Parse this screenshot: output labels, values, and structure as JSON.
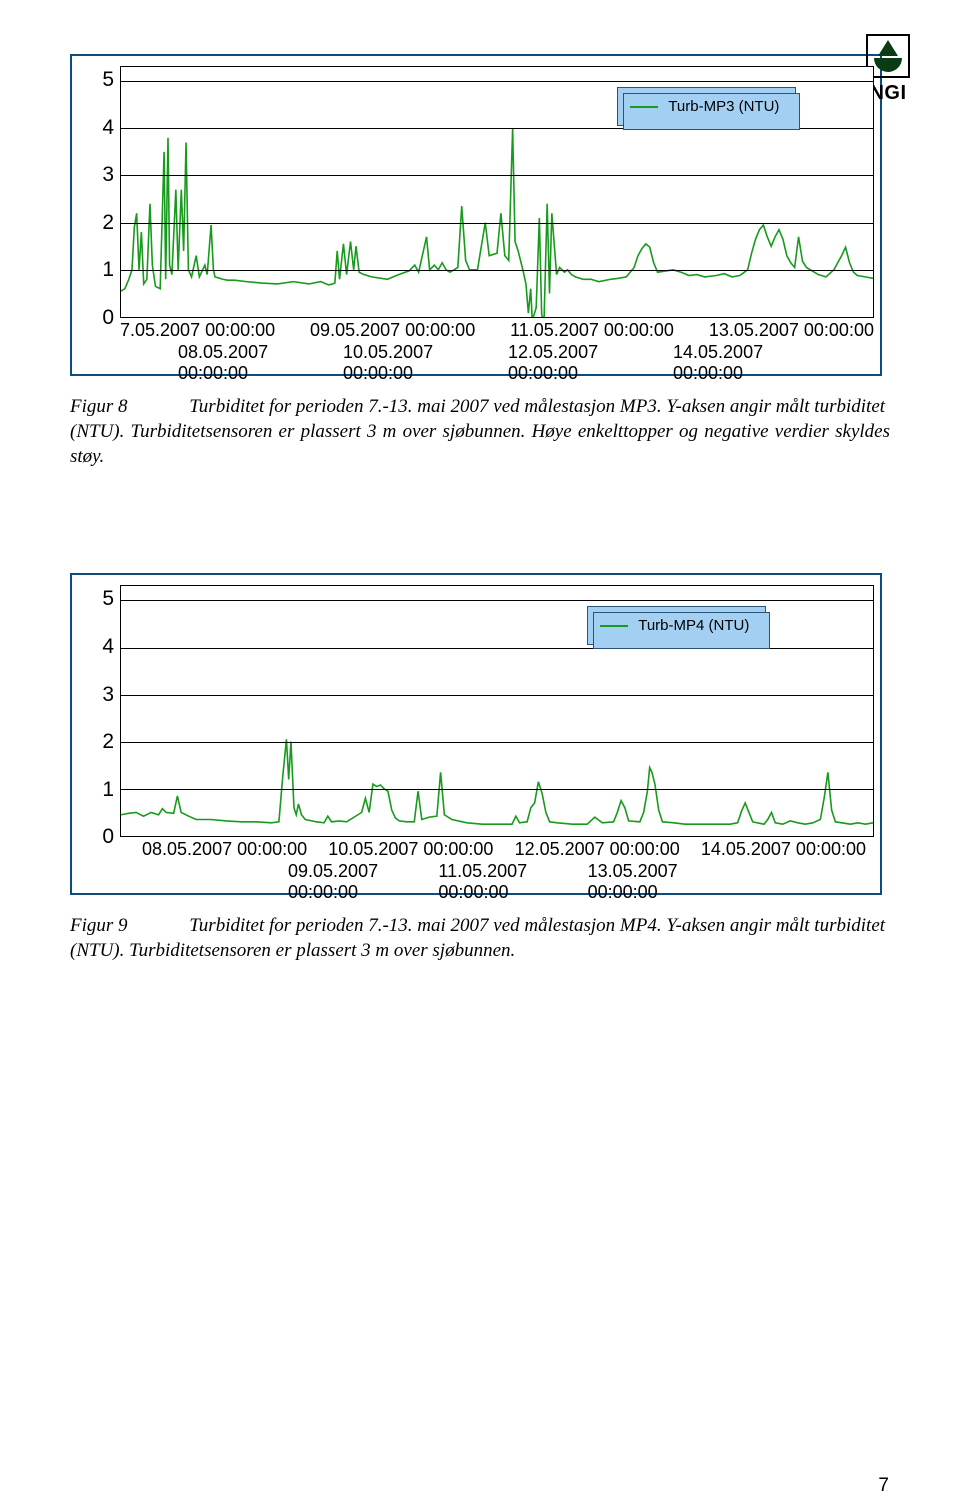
{
  "logo_text": "NGI",
  "line_color": "#189a1c",
  "legend_bg": "#a3cff3",
  "legend_border": "#2b5379",
  "chart_border": "#0a4d80",
  "chart1": {
    "type": "line",
    "legend_label": "Turb-MP3 (NTU)",
    "legend_pos_pct": [
      66,
      8
    ],
    "ylim": [
      0,
      5.3
    ],
    "yticks": [
      0,
      1,
      2,
      3,
      4,
      5
    ],
    "x_row1": [
      "7.05.2007 00:00:00",
      "09.05.2007 00:00:00",
      "11.05.2007 00:00:00",
      "13.05.2007 00:00:00"
    ],
    "x_row2": [
      "08.05.2007 00:00:00",
      "10.05.2007 00:00:00",
      "12.05.2007 00:00:00",
      "14.05.2007 00:00:00"
    ],
    "series": [
      [
        0,
        0.55
      ],
      [
        0.5,
        0.6
      ],
      [
        1,
        0.8
      ],
      [
        1.4,
        1.0
      ],
      [
        1.7,
        1.9
      ],
      [
        2,
        2.2
      ],
      [
        2.3,
        1.0
      ],
      [
        2.6,
        1.8
      ],
      [
        2.9,
        0.7
      ],
      [
        3.3,
        0.8
      ],
      [
        3.7,
        2.4
      ],
      [
        4,
        1.1
      ],
      [
        4.4,
        0.65
      ],
      [
        5,
        0.6
      ],
      [
        5.5,
        3.5
      ],
      [
        5.7,
        0.8
      ],
      [
        6,
        3.8
      ],
      [
        6.2,
        1.1
      ],
      [
        6.5,
        0.9
      ],
      [
        7,
        2.7
      ],
      [
        7.3,
        1.0
      ],
      [
        7.7,
        2.7
      ],
      [
        8,
        1.4
      ],
      [
        8.3,
        3.7
      ],
      [
        8.6,
        1.0
      ],
      [
        9,
        0.85
      ],
      [
        9.6,
        1.3
      ],
      [
        10,
        0.85
      ],
      [
        10.7,
        1.1
      ],
      [
        11,
        0.9
      ],
      [
        11.5,
        1.95
      ],
      [
        11.8,
        1.0
      ],
      [
        12,
        0.85
      ],
      [
        13,
        0.8
      ],
      [
        13.6,
        0.78
      ],
      [
        14.5,
        0.78
      ],
      [
        16,
        0.75
      ],
      [
        18,
        0.72
      ],
      [
        20,
        0.7
      ],
      [
        22,
        0.75
      ],
      [
        24,
        0.7
      ],
      [
        25.5,
        0.75
      ],
      [
        26.5,
        0.68
      ],
      [
        27,
        0.7
      ],
      [
        27.3,
        0.72
      ],
      [
        27.6,
        1.4
      ],
      [
        27.9,
        0.8
      ],
      [
        28.4,
        1.55
      ],
      [
        28.8,
        0.9
      ],
      [
        29.3,
        1.6
      ],
      [
        29.7,
        1.0
      ],
      [
        30,
        1.5
      ],
      [
        30.4,
        0.95
      ],
      [
        31,
        0.9
      ],
      [
        32,
        0.85
      ],
      [
        34,
        0.8
      ],
      [
        35.5,
        0.9
      ],
      [
        36.8,
        0.98
      ],
      [
        37.5,
        1.1
      ],
      [
        38,
        0.95
      ],
      [
        39,
        1.7
      ],
      [
        39.4,
        1.0
      ],
      [
        40,
        1.1
      ],
      [
        40.5,
        1.0
      ],
      [
        41,
        1.15
      ],
      [
        41.5,
        1.0
      ],
      [
        42,
        0.95
      ],
      [
        43,
        1.05
      ],
      [
        43.5,
        2.35
      ],
      [
        44,
        1.2
      ],
      [
        44.5,
        1.0
      ],
      [
        45.5,
        1.0
      ],
      [
        46.5,
        2.0
      ],
      [
        47,
        1.3
      ],
      [
        48,
        1.35
      ],
      [
        48.5,
        2.2
      ],
      [
        49,
        1.3
      ],
      [
        49.5,
        1.2
      ],
      [
        50,
        4.0
      ],
      [
        50.3,
        1.6
      ],
      [
        50.7,
        1.4
      ],
      [
        51.3,
        1.0
      ],
      [
        51.7,
        0.7
      ],
      [
        52,
        0.08
      ],
      [
        52.3,
        0.6
      ],
      [
        52.5,
        -0.08
      ],
      [
        53,
        0.2
      ],
      [
        53.4,
        2.1
      ],
      [
        53.7,
        0.05
      ],
      [
        54,
        -0.1
      ],
      [
        54.4,
        2.4
      ],
      [
        54.7,
        0.5
      ],
      [
        55,
        2.2
      ],
      [
        55.6,
        0.9
      ],
      [
        56,
        1.05
      ],
      [
        56.6,
        0.95
      ],
      [
        57,
        1.0
      ],
      [
        57.5,
        0.9
      ],
      [
        58,
        0.85
      ],
      [
        59,
        0.8
      ],
      [
        60,
        0.8
      ],
      [
        61,
        0.75
      ],
      [
        62.5,
        0.8
      ],
      [
        63.5,
        0.82
      ],
      [
        64.5,
        0.85
      ],
      [
        65.5,
        1.05
      ],
      [
        66,
        1.3
      ],
      [
        66.5,
        1.45
      ],
      [
        67,
        1.55
      ],
      [
        67.5,
        1.48
      ],
      [
        68,
        1.15
      ],
      [
        68.5,
        0.95
      ],
      [
        70.5,
        1.0
      ],
      [
        71.5,
        0.95
      ],
      [
        72.5,
        0.88
      ],
      [
        73.5,
        0.9
      ],
      [
        74.5,
        0.85
      ],
      [
        76,
        0.88
      ],
      [
        77,
        0.92
      ],
      [
        78,
        0.85
      ],
      [
        79,
        0.88
      ],
      [
        80,
        1.0
      ],
      [
        80.5,
        1.35
      ],
      [
        81,
        1.65
      ],
      [
        81.5,
        1.85
      ],
      [
        82,
        1.95
      ],
      [
        82.5,
        1.7
      ],
      [
        83,
        1.5
      ],
      [
        83.5,
        1.7
      ],
      [
        84,
        1.85
      ],
      [
        84.5,
        1.65
      ],
      [
        85,
        1.3
      ],
      [
        85.5,
        1.15
      ],
      [
        86,
        1.05
      ],
      [
        86.5,
        1.7
      ],
      [
        87,
        1.18
      ],
      [
        87.5,
        1.05
      ],
      [
        88,
        1.0
      ],
      [
        89,
        0.9
      ],
      [
        90,
        0.85
      ],
      [
        91,
        1.0
      ],
      [
        92,
        1.3
      ],
      [
        92.5,
        1.48
      ],
      [
        93,
        1.15
      ],
      [
        93.5,
        0.95
      ],
      [
        94,
        0.88
      ],
      [
        95,
        0.85
      ],
      [
        96,
        0.82
      ]
    ]
  },
  "caption1": {
    "label": "Figur 8",
    "text_line1": "Turbiditet for perioden 7.-13. mai 2007 ved målestasjon MP3. Y-aksen angir målt turbiditet",
    "text_line2": "(NTU). Turbiditetsensoren er plassert 3 m over sjøbunnen. Høye enkelttopper og negative verdier skyldes støy."
  },
  "chart2": {
    "type": "line",
    "legend_label": "Turb-MP4 (NTU)",
    "legend_pos_pct": [
      62,
      8
    ],
    "ylim": [
      0,
      5.3
    ],
    "yticks": [
      0,
      1,
      2,
      3,
      4,
      5
    ],
    "x_row1": [
      "08.05.2007 00:00:00",
      "10.05.2007 00:00:00",
      "12.05.2007 00:00:00",
      "14.05.2007 00:00:00"
    ],
    "x_row2": [
      "09.05.2007 00:00:00",
      "11.05.2007 00:00:00",
      "13.05.2007 00:00:00"
    ],
    "series": [
      [
        0,
        0.45
      ],
      [
        1,
        0.48
      ],
      [
        2,
        0.5
      ],
      [
        3,
        0.42
      ],
      [
        4,
        0.5
      ],
      [
        5,
        0.45
      ],
      [
        5.5,
        0.58
      ],
      [
        6,
        0.5
      ],
      [
        7,
        0.48
      ],
      [
        7.5,
        0.85
      ],
      [
        8,
        0.5
      ],
      [
        9,
        0.42
      ],
      [
        10,
        0.35
      ],
      [
        12,
        0.35
      ],
      [
        14,
        0.32
      ],
      [
        16,
        0.3
      ],
      [
        18,
        0.3
      ],
      [
        20,
        0.28
      ],
      [
        21,
        0.3
      ],
      [
        21.5,
        1.25
      ],
      [
        22,
        2.05
      ],
      [
        22.3,
        1.2
      ],
      [
        22.6,
        2.0
      ],
      [
        23,
        0.6
      ],
      [
        23.3,
        0.45
      ],
      [
        23.6,
        0.68
      ],
      [
        24,
        0.45
      ],
      [
        24.5,
        0.35
      ],
      [
        26,
        0.3
      ],
      [
        27,
        0.28
      ],
      [
        27.5,
        0.42
      ],
      [
        28,
        0.3
      ],
      [
        29,
        0.32
      ],
      [
        30,
        0.3
      ],
      [
        31,
        0.4
      ],
      [
        32,
        0.5
      ],
      [
        32.5,
        0.8
      ],
      [
        33,
        0.5
      ],
      [
        33.5,
        1.1
      ],
      [
        34,
        1.05
      ],
      [
        34.5,
        1.08
      ],
      [
        35,
        1.0
      ],
      [
        35.5,
        0.95
      ],
      [
        36,
        0.55
      ],
      [
        36.5,
        0.38
      ],
      [
        37,
        0.32
      ],
      [
        38,
        0.3
      ],
      [
        39,
        0.3
      ],
      [
        39.5,
        0.95
      ],
      [
        40,
        0.35
      ],
      [
        41,
        0.4
      ],
      [
        42,
        0.42
      ],
      [
        42.5,
        1.35
      ],
      [
        43,
        0.45
      ],
      [
        44,
        0.35
      ],
      [
        46,
        0.28
      ],
      [
        48,
        0.25
      ],
      [
        50,
        0.25
      ],
      [
        52,
        0.25
      ],
      [
        52.5,
        0.42
      ],
      [
        53,
        0.28
      ],
      [
        54,
        0.3
      ],
      [
        54.5,
        0.6
      ],
      [
        55,
        0.7
      ],
      [
        55.5,
        1.15
      ],
      [
        56,
        0.9
      ],
      [
        56.5,
        0.5
      ],
      [
        57,
        0.3
      ],
      [
        58,
        0.28
      ],
      [
        60,
        0.25
      ],
      [
        62,
        0.25
      ],
      [
        63,
        0.4
      ],
      [
        64,
        0.28
      ],
      [
        65.5,
        0.3
      ],
      [
        66,
        0.5
      ],
      [
        66.5,
        0.75
      ],
      [
        67,
        0.6
      ],
      [
        67.5,
        0.32
      ],
      [
        69,
        0.3
      ],
      [
        69.5,
        0.5
      ],
      [
        70,
        0.95
      ],
      [
        70.3,
        1.45
      ],
      [
        70.6,
        1.35
      ],
      [
        71,
        1.1
      ],
      [
        71.5,
        0.55
      ],
      [
        72,
        0.3
      ],
      [
        73.5,
        0.28
      ],
      [
        75,
        0.25
      ],
      [
        77,
        0.25
      ],
      [
        79,
        0.25
      ],
      [
        81,
        0.25
      ],
      [
        82,
        0.28
      ],
      [
        82.5,
        0.52
      ],
      [
        83,
        0.7
      ],
      [
        83.5,
        0.5
      ],
      [
        84,
        0.3
      ],
      [
        85.5,
        0.25
      ],
      [
        86,
        0.35
      ],
      [
        86.5,
        0.5
      ],
      [
        87,
        0.28
      ],
      [
        88,
        0.25
      ],
      [
        89,
        0.32
      ],
      [
        90,
        0.28
      ],
      [
        91,
        0.25
      ],
      [
        92,
        0.28
      ],
      [
        93,
        0.35
      ],
      [
        93.5,
        0.8
      ],
      [
        94,
        1.35
      ],
      [
        94.5,
        0.55
      ],
      [
        95,
        0.3
      ],
      [
        97,
        0.25
      ],
      [
        98,
        0.28
      ],
      [
        99,
        0.25
      ],
      [
        100,
        0.28
      ]
    ]
  },
  "caption2": {
    "label": "Figur 9",
    "text_line1": "Turbiditet for perioden 7.-13. mai 2007 ved målestasjon MP4. Y-aksen angir målt turbiditet",
    "text_line2": "(NTU). Turbiditetsensoren er plassert 3 m over sjøbunnen."
  },
  "page_number": "7"
}
